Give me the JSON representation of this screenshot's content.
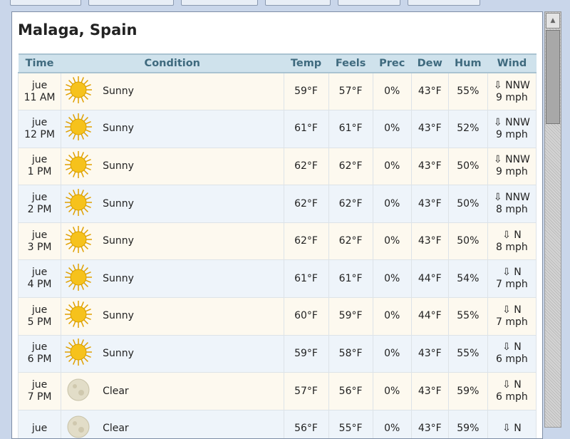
{
  "location": "Malaga, Spain",
  "headers": {
    "time": "Time",
    "condition": "Condition",
    "temp": "Temp",
    "feels": "Feels",
    "prec": "Prec",
    "dew": "Dew",
    "hum": "Hum",
    "wind": "Wind"
  },
  "rows": [
    {
      "day": "jue",
      "hour": "11 AM",
      "icon": "sun-icon",
      "condition": "Sunny",
      "temp": "59°F",
      "feels": "57°F",
      "prec": "0%",
      "dew": "43°F",
      "hum": "55%",
      "wind_arrow": "⇩",
      "wind_dir": "NNW",
      "wind_speed": "9 mph"
    },
    {
      "day": "jue",
      "hour": "12 PM",
      "icon": "sun-icon",
      "condition": "Sunny",
      "temp": "61°F",
      "feels": "61°F",
      "prec": "0%",
      "dew": "43°F",
      "hum": "52%",
      "wind_arrow": "⇩",
      "wind_dir": "NNW",
      "wind_speed": "9 mph"
    },
    {
      "day": "jue",
      "hour": "1 PM",
      "icon": "sun-icon",
      "condition": "Sunny",
      "temp": "62°F",
      "feels": "62°F",
      "prec": "0%",
      "dew": "43°F",
      "hum": "50%",
      "wind_arrow": "⇩",
      "wind_dir": "NNW",
      "wind_speed": "9 mph"
    },
    {
      "day": "jue",
      "hour": "2 PM",
      "icon": "sun-icon",
      "condition": "Sunny",
      "temp": "62°F",
      "feels": "62°F",
      "prec": "0%",
      "dew": "43°F",
      "hum": "50%",
      "wind_arrow": "⇩",
      "wind_dir": "NNW",
      "wind_speed": "8 mph"
    },
    {
      "day": "jue",
      "hour": "3 PM",
      "icon": "sun-icon",
      "condition": "Sunny",
      "temp": "62°F",
      "feels": "62°F",
      "prec": "0%",
      "dew": "43°F",
      "hum": "50%",
      "wind_arrow": "⇩",
      "wind_dir": "N",
      "wind_speed": "8 mph"
    },
    {
      "day": "jue",
      "hour": "4 PM",
      "icon": "sun-icon",
      "condition": "Sunny",
      "temp": "61°F",
      "feels": "61°F",
      "prec": "0%",
      "dew": "44°F",
      "hum": "54%",
      "wind_arrow": "⇩",
      "wind_dir": "N",
      "wind_speed": "7 mph"
    },
    {
      "day": "jue",
      "hour": "5 PM",
      "icon": "sun-icon",
      "condition": "Sunny",
      "temp": "60°F",
      "feels": "59°F",
      "prec": "0%",
      "dew": "44°F",
      "hum": "55%",
      "wind_arrow": "⇩",
      "wind_dir": "N",
      "wind_speed": "7 mph"
    },
    {
      "day": "jue",
      "hour": "6 PM",
      "icon": "sun-icon",
      "condition": "Sunny",
      "temp": "59°F",
      "feels": "58°F",
      "prec": "0%",
      "dew": "43°F",
      "hum": "55%",
      "wind_arrow": "⇩",
      "wind_dir": "N",
      "wind_speed": "6 mph"
    },
    {
      "day": "jue",
      "hour": "7 PM",
      "icon": "moon-icon",
      "condition": "Clear",
      "temp": "57°F",
      "feels": "56°F",
      "prec": "0%",
      "dew": "43°F",
      "hum": "59%",
      "wind_arrow": "⇩",
      "wind_dir": "N",
      "wind_speed": "6 mph"
    },
    {
      "day": "jue",
      "hour": "",
      "icon": "moon-icon",
      "condition": "Clear",
      "temp": "56°F",
      "feels": "55°F",
      "prec": "0%",
      "dew": "43°F",
      "hum": "59%",
      "wind_arrow": "⇩",
      "wind_dir": "N",
      "wind_speed": ""
    }
  ],
  "colors": {
    "header_bg": "#cfe2ec",
    "header_text": "#3f6a7e",
    "row_odd": "#fdf9ef",
    "row_even": "#eef4fa"
  }
}
